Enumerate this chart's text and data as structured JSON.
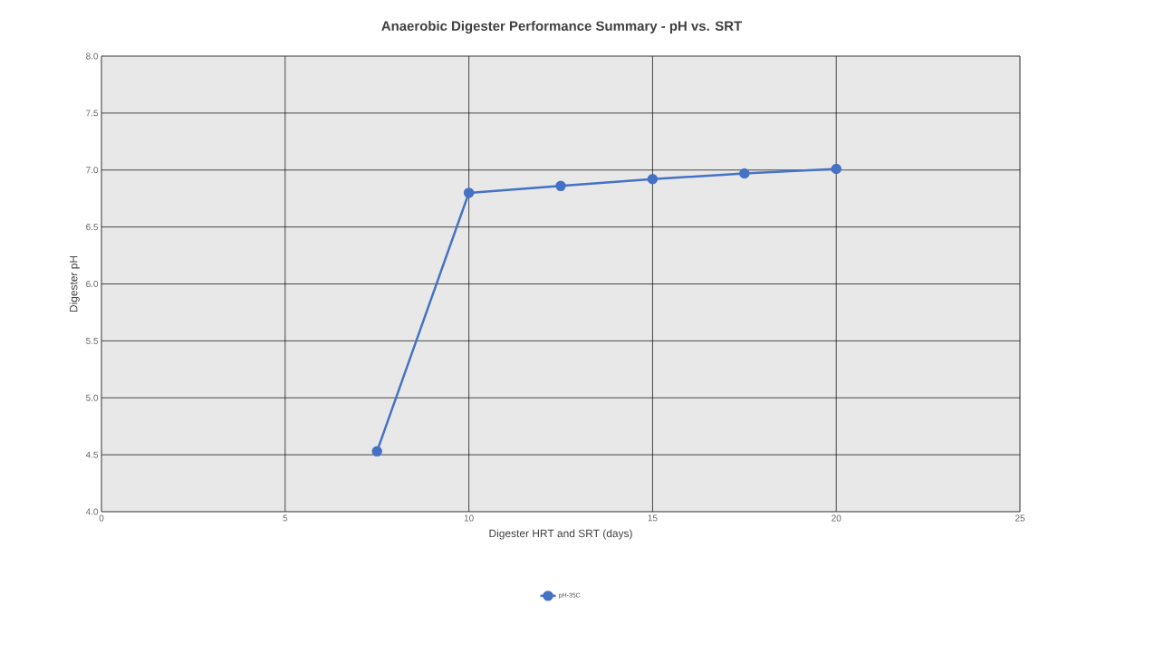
{
  "chart_data": {
    "type": "line",
    "title": "Anaerobic Digester Performance Summary - pH vs. SRT",
    "xlabel": "Digester HRT and SRT (days)",
    "ylabel": "Digester pH",
    "x": [
      7.5,
      10,
      12.5,
      15,
      17.5,
      20
    ],
    "series": [
      {
        "name": "pH-35C",
        "color": "#4472c4",
        "values": [
          4.53,
          6.8,
          6.86,
          6.92,
          6.97,
          7.01
        ]
      }
    ],
    "xlim": [
      0,
      25
    ],
    "xticks": [
      0,
      5,
      10,
      15,
      20,
      25
    ],
    "ylim": [
      4.0,
      8.0
    ],
    "yticks": [
      {
        "value": 4.0,
        "label": "4.0"
      },
      {
        "value": 4.5,
        "label": "4.5"
      },
      {
        "value": 5.0,
        "label": "5.0"
      },
      {
        "value": 5.5,
        "label": "5.5"
      },
      {
        "value": 6.0,
        "label": "6.0"
      },
      {
        "value": 6.5,
        "label": "6.5"
      },
      {
        "value": 7.0,
        "label": "7.0"
      },
      {
        "value": 7.5,
        "label": "7.5"
      },
      {
        "value": 8.0,
        "label": "8.0"
      }
    ],
    "grid": true,
    "legend": "bottom",
    "marker": "circle",
    "line_style": "solid"
  }
}
